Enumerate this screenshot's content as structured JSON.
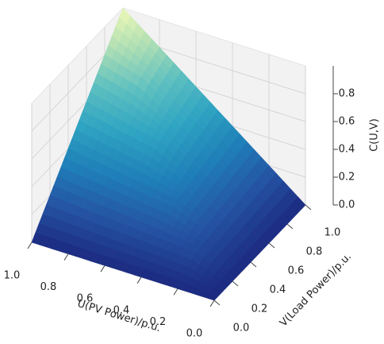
{
  "chart_data": {
    "type": "surface",
    "xlabel": "U(PV Power)/p.u.",
    "ylabel": "V(Load Power)/p.u.",
    "zlabel": "C(U,V)",
    "u": [
      0,
      0.2,
      0.4,
      0.6,
      0.8,
      1
    ],
    "v": [
      0,
      0.2,
      0.4,
      0.6,
      0.8,
      1
    ],
    "z": [
      [
        0,
        0,
        0,
        0,
        0,
        0
      ],
      [
        0,
        0.12,
        0.14,
        0.16,
        0.18,
        0.2
      ],
      [
        0,
        0.14,
        0.28,
        0.32,
        0.36,
        0.4
      ],
      [
        0,
        0.16,
        0.32,
        0.48,
        0.54,
        0.6
      ],
      [
        0,
        0.18,
        0.36,
        0.54,
        0.72,
        0.8
      ],
      [
        0,
        0.2,
        0.4,
        0.6,
        0.8,
        1
      ]
    ],
    "xlim": [
      0,
      1
    ],
    "ylim": [
      0,
      1
    ],
    "zlim": [
      0,
      1
    ],
    "xticks": [
      {
        "value": 0,
        "label": "0.0"
      },
      {
        "value": 0.2,
        "label": "0.2"
      },
      {
        "value": 0.4,
        "label": "0.4"
      },
      {
        "value": 0.6,
        "label": "0.6"
      },
      {
        "value": 0.8,
        "label": "0.8"
      },
      {
        "value": 1,
        "label": "1.0"
      }
    ],
    "yticks": [
      {
        "value": 0,
        "label": "0.0"
      },
      {
        "value": 0.2,
        "label": "0.2"
      },
      {
        "value": 0.4,
        "label": "0.4"
      },
      {
        "value": 0.6,
        "label": "0.6"
      },
      {
        "value": 0.8,
        "label": "0.8"
      },
      {
        "value": 1,
        "label": "1.0"
      }
    ],
    "zticks": [
      {
        "value": 0,
        "label": "0.0"
      },
      {
        "value": 0.2,
        "label": "0.2"
      },
      {
        "value": 0.4,
        "label": "0.4"
      },
      {
        "value": 0.6,
        "label": "0.6"
      },
      {
        "value": 0.8,
        "label": "0.8"
      }
    ],
    "colormap": [
      "#1c2a80",
      "#2554a4",
      "#1f80b8",
      "#2fa4c2",
      "#5ec0c0",
      "#b2e0b4",
      "#f0f9b8"
    ],
    "grid": true
  }
}
